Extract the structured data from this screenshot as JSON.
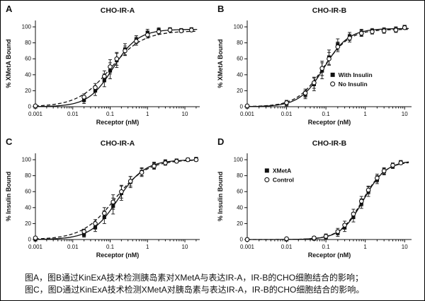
{
  "caption": {
    "line1": "图A，图B通过KinExA技术检测胰岛素对XMetA与表达IR-A，IR-B的CHO细胞结合的影响；",
    "line2": "图C，图D通过KinExA技术检测XMetA对胰岛素与表达IR-A，IR-B的CHO细胞结合的影响。"
  },
  "chart_data": [
    {
      "type": "scatter",
      "panel": "A",
      "title": "CHO-IR-A",
      "xlabel": "Receptor (nM)",
      "ylabel": "% XMetA Bound",
      "xscale": "log",
      "xlim": [
        0.001,
        25
      ],
      "ylim": [
        0,
        108
      ],
      "xticks": [
        0.001,
        0.01,
        0.1,
        1,
        10
      ],
      "yticks": [
        0,
        20,
        40,
        60,
        80,
        100
      ],
      "legend": {
        "show": false,
        "x": 0,
        "y": 0
      },
      "series": [
        {
          "name": "With Insulin",
          "marker": "filled-square",
          "line": "solid",
          "fit": {
            "bottom": 0,
            "top": 97,
            "ec50": 0.12,
            "hill": 1.3
          },
          "x": [
            0.001,
            0.02,
            0.04,
            0.07,
            0.1,
            0.15,
            0.25,
            0.5,
            1,
            2,
            4,
            8,
            15
          ],
          "y": [
            0,
            8,
            20,
            33,
            45,
            58,
            72,
            84,
            93,
            96,
            97,
            96,
            97
          ],
          "err": [
            1,
            4,
            6,
            8,
            10,
            9,
            7,
            5,
            4,
            3,
            2,
            2,
            2
          ]
        },
        {
          "name": "No Insulin",
          "marker": "open-circle",
          "line": "dashed",
          "fit": {
            "bottom": 0,
            "top": 95,
            "ec50": 0.1,
            "hill": 1.0
          },
          "x": [
            0.001,
            0.02,
            0.04,
            0.07,
            0.1,
            0.15,
            0.25,
            0.5,
            1,
            2,
            4,
            8,
            15
          ],
          "y": [
            1,
            12,
            24,
            38,
            50,
            60,
            70,
            82,
            90,
            94,
            96,
            95,
            96
          ],
          "err": [
            1,
            4,
            5,
            7,
            9,
            8,
            6,
            5,
            4,
            3,
            2,
            2,
            2
          ]
        }
      ]
    },
    {
      "type": "scatter",
      "panel": "B",
      "title": "CHO-IR-B",
      "xlabel": "Receptor (nM)",
      "ylabel": "% XMetA Bound",
      "xscale": "log",
      "xlim": [
        0.001,
        15
      ],
      "ylim": [
        0,
        108
      ],
      "xticks": [
        0.001,
        0.01,
        0.1,
        1,
        10
      ],
      "yticks": [
        0,
        20,
        40,
        60,
        80,
        100
      ],
      "legend": {
        "show": true,
        "x": 0.52,
        "y": 0.63
      },
      "series": [
        {
          "name": "With Insulin",
          "marker": "filled-square",
          "line": "solid",
          "fit": {
            "bottom": 0,
            "top": 98,
            "ec50": 0.09,
            "hill": 1.4
          },
          "x": [
            0.001,
            0.01,
            0.03,
            0.05,
            0.08,
            0.12,
            0.2,
            0.4,
            0.8,
            1.5,
            3,
            6,
            10
          ],
          "y": [
            0,
            4,
            15,
            28,
            45,
            62,
            78,
            88,
            93,
            95,
            96,
            97,
            100
          ],
          "err": [
            1,
            3,
            5,
            8,
            10,
            9,
            7,
            5,
            4,
            3,
            3,
            3,
            2
          ]
        },
        {
          "name": "No Insulin",
          "marker": "open-circle",
          "line": "dashed",
          "fit": {
            "bottom": 0,
            "top": 97,
            "ec50": 0.085,
            "hill": 1.3
          },
          "x": [
            0.001,
            0.01,
            0.03,
            0.05,
            0.08,
            0.12,
            0.2,
            0.4,
            0.8,
            1.5,
            3,
            6,
            10
          ],
          "y": [
            1,
            5,
            17,
            30,
            48,
            60,
            75,
            86,
            92,
            94,
            95,
            96,
            99
          ],
          "err": [
            1,
            3,
            5,
            7,
            9,
            8,
            6,
            5,
            4,
            3,
            3,
            3,
            2
          ]
        }
      ]
    },
    {
      "type": "scatter",
      "panel": "C",
      "title": "CHO-IR-A",
      "xlabel": "Receptor (nM)",
      "ylabel": "% Insulin Bound",
      "xscale": "log",
      "xlim": [
        0.001,
        25
      ],
      "ylim": [
        0,
        108
      ],
      "xticks": [
        0.001,
        0.01,
        0.1,
        1,
        10
      ],
      "yticks": [
        0,
        20,
        40,
        60,
        80,
        100
      ],
      "legend": {
        "show": false,
        "x": 0,
        "y": 0
      },
      "series": [
        {
          "name": "XMetA",
          "marker": "filled-square",
          "line": "solid",
          "fit": {
            "bottom": 0,
            "top": 100,
            "ec50": 0.16,
            "hill": 1.2
          },
          "x": [
            0.001,
            0.02,
            0.04,
            0.07,
            0.12,
            0.2,
            0.35,
            0.7,
            1.5,
            3,
            6,
            12,
            20
          ],
          "y": [
            0,
            6,
            15,
            28,
            42,
            58,
            72,
            85,
            93,
            97,
            99,
            100,
            101
          ],
          "err": [
            1,
            3,
            5,
            8,
            10,
            9,
            7,
            5,
            4,
            3,
            2,
            2,
            2
          ]
        },
        {
          "name": "Control",
          "marker": "open-circle",
          "line": "dashed",
          "fit": {
            "bottom": 0,
            "top": 100,
            "ec50": 0.13,
            "hill": 1.0
          },
          "x": [
            0.001,
            0.02,
            0.04,
            0.07,
            0.12,
            0.2,
            0.35,
            0.7,
            1.5,
            3,
            6,
            12,
            20
          ],
          "y": [
            2,
            10,
            20,
            33,
            47,
            60,
            73,
            84,
            92,
            96,
            98,
            100,
            100
          ],
          "err": [
            1,
            3,
            5,
            7,
            9,
            8,
            6,
            5,
            4,
            3,
            2,
            2,
            2
          ]
        }
      ]
    },
    {
      "type": "scatter",
      "panel": "D",
      "title": "CHO-IR-B",
      "xlabel": "Receptor (nM)",
      "ylabel": "% Insulin Bound",
      "xscale": "log",
      "xlim": [
        0.001,
        15
      ],
      "ylim": [
        0,
        108
      ],
      "xticks": [
        0.001,
        0.01,
        0.1,
        1,
        10
      ],
      "yticks": [
        0,
        20,
        40,
        60,
        80,
        100
      ],
      "legend": {
        "show": true,
        "x": 0.12,
        "y": 0.2
      },
      "series": [
        {
          "name": "XMetA",
          "marker": "filled-square",
          "line": "solid",
          "fit": {
            "bottom": 0,
            "top": 99,
            "ec50": 0.9,
            "hill": 1.5
          },
          "x": [
            0.001,
            0.01,
            0.05,
            0.1,
            0.2,
            0.3,
            0.5,
            0.8,
            1.2,
            2,
            3,
            5,
            8
          ],
          "y": [
            0,
            0,
            1,
            3,
            8,
            15,
            28,
            45,
            60,
            75,
            85,
            92,
            97
          ],
          "err": [
            1,
            1,
            2,
            3,
            4,
            5,
            6,
            6,
            6,
            5,
            4,
            3,
            2
          ]
        },
        {
          "name": "Control",
          "marker": "open-circle",
          "line": "dashed",
          "fit": {
            "bottom": 0,
            "top": 98,
            "ec50": 0.85,
            "hill": 1.5
          },
          "x": [
            0.001,
            0.01,
            0.05,
            0.1,
            0.2,
            0.3,
            0.5,
            0.8,
            1.2,
            2,
            3,
            5,
            8
          ],
          "y": [
            0,
            1,
            2,
            4,
            10,
            18,
            32,
            48,
            62,
            77,
            86,
            93,
            96
          ],
          "err": [
            1,
            1,
            2,
            3,
            4,
            5,
            6,
            6,
            5,
            5,
            4,
            3,
            2
          ]
        }
      ]
    }
  ]
}
